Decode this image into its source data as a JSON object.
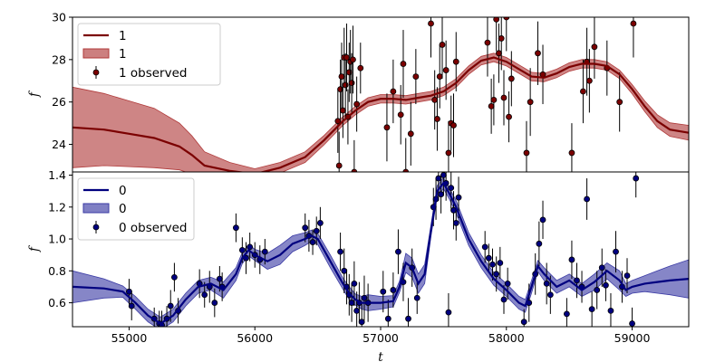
{
  "chart_data": {
    "type": "line",
    "x_axis": {
      "label": "t",
      "xlim": [
        54550,
        59450
      ],
      "ticks": [
        "55000",
        "56000",
        "57000",
        "58000",
        "59000"
      ],
      "tick_values": [
        55000,
        56000,
        57000,
        58000,
        59000
      ]
    },
    "panels": [
      {
        "ylabel": "f",
        "ylim": [
          22.7,
          30
        ],
        "yticks": [
          "24",
          "26",
          "28",
          "30"
        ],
        "ytick_values": [
          24,
          26,
          28,
          30
        ],
        "color": "#7b0000",
        "band_color": "#b03a3a",
        "legend": {
          "placement": "upper-left",
          "line_label": "1",
          "band_label": "1",
          "points_label": "1 observed"
        },
        "mean": {
          "x": [
            54550,
            54800,
            55000,
            55200,
            55400,
            55500,
            55600,
            55800,
            56000,
            56200,
            56400,
            56550,
            56700,
            56800,
            56900,
            57000,
            57100,
            57200,
            57300,
            57400,
            57500,
            57600,
            57700,
            57800,
            57900,
            58000,
            58100,
            58200,
            58300,
            58400,
            58500,
            58600,
            58700,
            58800,
            58900,
            59000,
            59100,
            59200,
            59300,
            59450
          ],
          "y": [
            24.8,
            24.7,
            24.5,
            24.3,
            23.9,
            23.5,
            23.0,
            22.75,
            22.6,
            22.9,
            23.4,
            24.2,
            25.1,
            25.6,
            26.0,
            26.15,
            26.15,
            26.1,
            26.2,
            26.3,
            26.5,
            26.9,
            27.5,
            27.95,
            28.1,
            27.9,
            27.55,
            27.2,
            27.15,
            27.35,
            27.65,
            27.8,
            27.8,
            27.7,
            27.3,
            26.6,
            25.8,
            25.1,
            24.7,
            24.55
          ]
        },
        "band_half_width": [
          1.9,
          1.7,
          1.55,
          1.4,
          1.1,
          0.9,
          0.65,
          0.4,
          0.25,
          0.25,
          0.25,
          0.22,
          0.2,
          0.2,
          0.2,
          0.2,
          0.2,
          0.2,
          0.2,
          0.2,
          0.2,
          0.2,
          0.2,
          0.2,
          0.2,
          0.2,
          0.2,
          0.2,
          0.2,
          0.2,
          0.2,
          0.2,
          0.2,
          0.2,
          0.2,
          0.22,
          0.25,
          0.3,
          0.32,
          0.35
        ],
        "observed": {
          "x": [
            56660,
            56670,
            56680,
            56690,
            56700,
            56710,
            56720,
            56730,
            56740,
            56750,
            56760,
            56770,
            56780,
            56790,
            56810,
            56840,
            57050,
            57100,
            57160,
            57180,
            57200,
            57240,
            57280,
            57400,
            57430,
            57450,
            57470,
            57490,
            57520,
            57540,
            57560,
            57580,
            57600,
            57850,
            57880,
            57900,
            57920,
            57940,
            57960,
            57980,
            58000,
            58020,
            58040,
            58160,
            58190,
            58250,
            58290,
            58520,
            58610,
            58640,
            58660,
            58700,
            58800,
            58900,
            59010
          ],
          "y": [
            25.1,
            23.0,
            26.6,
            27.2,
            25.6,
            28.1,
            26.8,
            28.1,
            25.3,
            27.4,
            27.9,
            26.9,
            28.0,
            22.7,
            25.9,
            27.6,
            24.8,
            26.5,
            25.4,
            27.8,
            22.7,
            24.5,
            27.2,
            29.7,
            26.1,
            25.2,
            27.2,
            28.7,
            27.5,
            23.6,
            25.0,
            24.9,
            27.9,
            28.8,
            25.8,
            26.1,
            29.9,
            28.3,
            29.0,
            26.2,
            30.0,
            25.3,
            27.1,
            23.6,
            26.0,
            28.3,
            27.3,
            23.6,
            26.5,
            27.9,
            27.0,
            28.6,
            27.6,
            26.0,
            29.7
          ],
          "err": [
            1.5,
            1.6,
            1.4,
            1.6,
            1.3,
            1.4,
            1.5,
            1.6,
            1.3,
            1.4,
            1.5,
            1.4,
            1.6,
            1.5,
            1.3,
            1.2,
            1.6,
            1.5,
            1.4,
            1.6,
            1.6,
            1.5,
            1.3,
            1.6,
            1.4,
            1.5,
            1.5,
            1.6,
            1.4,
            1.5,
            1.3,
            1.5,
            1.4,
            1.6,
            1.3,
            1.2,
            1.5,
            1.4,
            1.5,
            1.3,
            1.6,
            1.2,
            1.3,
            1.5,
            1.6,
            1.5,
            1.4,
            1.4,
            1.5,
            1.6,
            1.5,
            1.5,
            1.3,
            1.4,
            1.6
          ]
        }
      },
      {
        "ylabel": "f",
        "ylim": [
          0.45,
          1.42
        ],
        "yticks": [
          "0.6",
          "0.8",
          "1.0",
          "1.2",
          "1.4"
        ],
        "ytick_values": [
          0.6,
          0.8,
          1.0,
          1.2,
          1.4
        ],
        "color": "#00007f",
        "band_color": "#3b3ba5",
        "legend": {
          "placement": "upper-left",
          "line_label": "0",
          "band_label": "0",
          "points_label": "0 observed"
        },
        "mean": {
          "x": [
            54550,
            54800,
            54950,
            55050,
            55150,
            55250,
            55350,
            55450,
            55550,
            55650,
            55750,
            55850,
            55900,
            55950,
            56000,
            56100,
            56200,
            56300,
            56400,
            56450,
            56500,
            56600,
            56700,
            56750,
            56800,
            56850,
            56900,
            57000,
            57100,
            57150,
            57200,
            57250,
            57300,
            57350,
            57400,
            57450,
            57500,
            57550,
            57600,
            57700,
            57800,
            57900,
            58000,
            58100,
            58150,
            58200,
            58250,
            58300,
            58400,
            58500,
            58600,
            58700,
            58800,
            58900,
            58950,
            59000,
            59100,
            59200,
            59300,
            59450
          ],
          "y": [
            0.7,
            0.69,
            0.67,
            0.6,
            0.52,
            0.47,
            0.52,
            0.62,
            0.7,
            0.72,
            0.68,
            0.78,
            0.88,
            0.93,
            0.9,
            0.86,
            0.9,
            0.97,
            1.0,
            1.02,
            1.0,
            0.86,
            0.72,
            0.66,
            0.62,
            0.6,
            0.6,
            0.6,
            0.61,
            0.7,
            0.85,
            0.82,
            0.72,
            0.78,
            1.05,
            1.3,
            1.35,
            1.28,
            1.2,
            1.0,
            0.86,
            0.75,
            0.68,
            0.6,
            0.58,
            0.7,
            0.83,
            0.78,
            0.7,
            0.74,
            0.68,
            0.73,
            0.8,
            0.74,
            0.68,
            0.7,
            0.72,
            0.73,
            0.74,
            0.75
          ]
        },
        "band_half_width": [
          0.1,
          0.06,
          0.035,
          0.04,
          0.04,
          0.04,
          0.04,
          0.04,
          0.04,
          0.04,
          0.05,
          0.04,
          0.035,
          0.035,
          0.035,
          0.05,
          0.06,
          0.05,
          0.04,
          0.035,
          0.035,
          0.04,
          0.035,
          0.04,
          0.035,
          0.04,
          0.05,
          0.04,
          0.035,
          0.035,
          0.06,
          0.06,
          0.06,
          0.06,
          0.035,
          0.035,
          0.035,
          0.035,
          0.04,
          0.04,
          0.04,
          0.04,
          0.04,
          0.04,
          0.04,
          0.04,
          0.035,
          0.04,
          0.04,
          0.04,
          0.04,
          0.05,
          0.05,
          0.06,
          0.04,
          0.04,
          0.05,
          0.07,
          0.09,
          0.12
        ],
        "observed": {
          "x": [
            55000,
            55020,
            55200,
            55240,
            55260,
            55300,
            55330,
            55360,
            55390,
            55560,
            55600,
            55640,
            55680,
            55720,
            55740,
            55850,
            55900,
            55930,
            55960,
            56000,
            56040,
            56080,
            56400,
            56430,
            56460,
            56490,
            56520,
            56680,
            56710,
            56730,
            56750,
            56770,
            56790,
            56810,
            56830,
            56850,
            56870,
            56900,
            57020,
            57060,
            57100,
            57140,
            57180,
            57220,
            57250,
            57290,
            57420,
            57440,
            57460,
            57480,
            57500,
            57520,
            57540,
            57560,
            57580,
            57600,
            57620,
            57830,
            57860,
            57890,
            57920,
            57950,
            57980,
            58010,
            58140,
            58180,
            58230,
            58260,
            58290,
            58320,
            58350,
            58480,
            58520,
            58560,
            58600,
            58640,
            58680,
            58720,
            58760,
            58790,
            58830,
            58870,
            58920,
            58960,
            59000,
            59030
          ],
          "y": [
            0.67,
            0.58,
            0.5,
            0.47,
            0.46,
            0.5,
            0.58,
            0.76,
            0.55,
            0.72,
            0.65,
            0.7,
            0.6,
            0.75,
            0.7,
            1.07,
            0.93,
            0.88,
            0.95,
            0.9,
            0.87,
            0.92,
            1.07,
            1.02,
            0.98,
            1.05,
            1.1,
            0.92,
            0.8,
            0.7,
            0.65,
            0.6,
            0.72,
            0.55,
            0.6,
            0.48,
            0.63,
            0.6,
            0.67,
            0.5,
            0.68,
            0.92,
            0.73,
            0.5,
            0.82,
            0.63,
            1.2,
            1.25,
            1.38,
            1.28,
            1.4,
            1.35,
            0.54,
            1.32,
            1.18,
            1.1,
            1.26,
            0.95,
            0.88,
            0.84,
            0.78,
            0.85,
            0.62,
            0.72,
            0.48,
            0.6,
            0.78,
            0.97,
            1.12,
            0.72,
            0.65,
            0.53,
            0.87,
            0.74,
            0.7,
            1.25,
            0.56,
            0.68,
            0.82,
            0.71,
            0.55,
            0.92,
            0.7,
            0.77,
            0.47,
            1.38
          ],
          "err": [
            0.08,
            0.09,
            0.07,
            0.08,
            0.09,
            0.08,
            0.1,
            0.09,
            0.08,
            0.09,
            0.08,
            0.1,
            0.09,
            0.08,
            0.09,
            0.09,
            0.08,
            0.1,
            0.09,
            0.08,
            0.09,
            0.08,
            0.09,
            0.1,
            0.08,
            0.09,
            0.1,
            0.12,
            0.14,
            0.11,
            0.13,
            0.12,
            0.14,
            0.12,
            0.13,
            0.11,
            0.14,
            0.12,
            0.13,
            0.12,
            0.11,
            0.14,
            0.12,
            0.13,
            0.12,
            0.1,
            0.12,
            0.13,
            0.14,
            0.12,
            0.13,
            0.11,
            0.12,
            0.13,
            0.12,
            0.11,
            0.13,
            0.1,
            0.09,
            0.1,
            0.11,
            0.1,
            0.09,
            0.1,
            0.08,
            0.12,
            0.13,
            0.14,
            0.12,
            0.13,
            0.12,
            0.1,
            0.12,
            0.11,
            0.1,
            0.13,
            0.11,
            0.12,
            0.12,
            0.1,
            0.11,
            0.13,
            0.1,
            0.11,
            0.1,
            0.12
          ]
        }
      }
    ]
  }
}
